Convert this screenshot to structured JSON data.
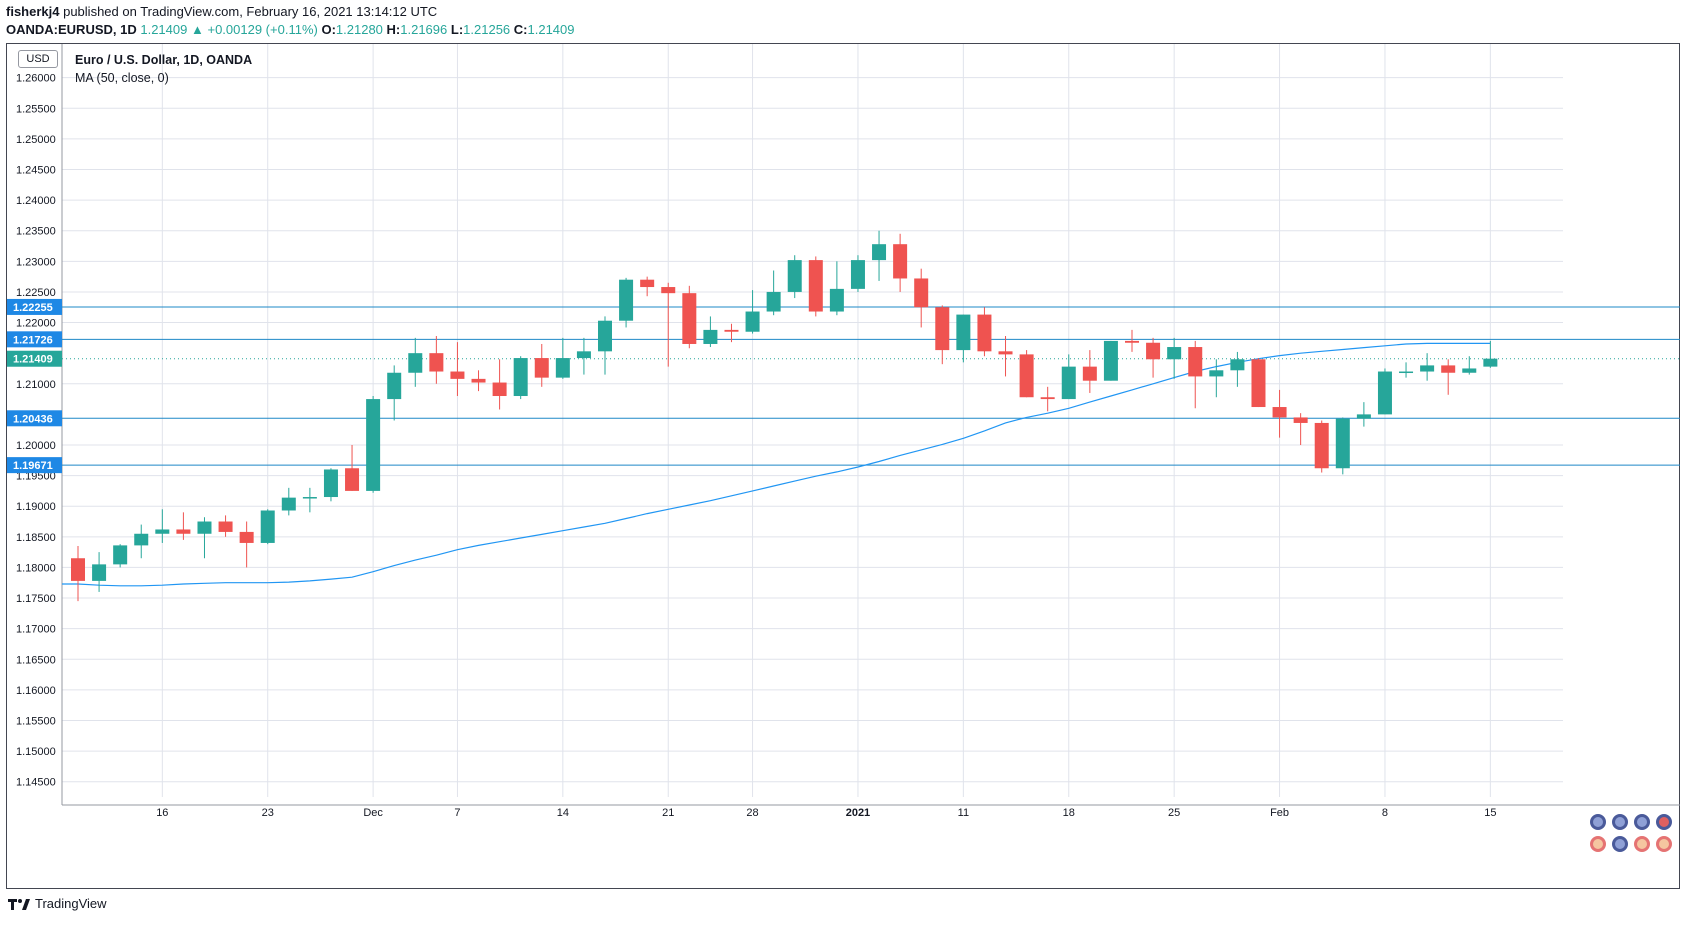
{
  "header": {
    "author": "fisherkj4",
    "published_text": " published on TradingView.com, February 16, 2021 13:14:12 UTC",
    "symbol": "OANDA:EURUSD, 1D",
    "last": "1.21409",
    "arrow": "▲",
    "change": "+0.00129 (+0.11%)",
    "o_label": "O:",
    "o_value": "1.21280",
    "h_label": "H:",
    "h_value": "1.21696",
    "l_label": "L:",
    "l_value": "1.21256",
    "c_label": "C:",
    "c_value": "1.21409"
  },
  "legend": {
    "title": "Euro / U.S. Dollar, 1D, OANDA",
    "ma": "MA (50, close, 0)"
  },
  "currency_badge": "USD",
  "footer": {
    "brand": "TradingView"
  },
  "colors": {
    "up": "#26a69a",
    "down": "#ef5350",
    "ma_line": "#2196f3",
    "level_line": "#1e88c7",
    "grid": "#e0e3eb",
    "badge": "#1e88e5"
  },
  "chart_data": {
    "type": "candlestick",
    "title": "Euro / U.S. Dollar, 1D, OANDA",
    "ylim": [
      1.1425,
      1.2655
    ],
    "y_ticks": [
      "1.26000",
      "1.25500",
      "1.25000",
      "1.24500",
      "1.24000",
      "1.23500",
      "1.23000",
      "1.22500",
      "1.22000",
      "1.21000",
      "1.20000",
      "1.19500",
      "1.19000",
      "1.18500",
      "1.18000",
      "1.17500",
      "1.17000",
      "1.16500",
      "1.16000",
      "1.15500",
      "1.15000",
      "1.14500"
    ],
    "x_ticks": [
      "16",
      "23",
      "Dec",
      "7",
      "14",
      "21",
      "28",
      "2021",
      "11",
      "18",
      "25",
      "Feb",
      "8",
      "15"
    ],
    "x_tick_candle_index": [
      4,
      9,
      14,
      18,
      23,
      28,
      32,
      37,
      42,
      47,
      52,
      57,
      62,
      67
    ],
    "grid": true,
    "horizontal_levels": [
      "1.22255",
      "1.21726",
      "1.20436",
      "1.19671"
    ],
    "last_price": "1.21409",
    "candles": [
      [
        1.1815,
        1.1835,
        1.1745,
        1.1778
      ],
      [
        1.1778,
        1.1825,
        1.176,
        1.1805
      ],
      [
        1.1805,
        1.1838,
        1.18,
        1.1836
      ],
      [
        1.1836,
        1.187,
        1.1815,
        1.1855
      ],
      [
        1.1855,
        1.1895,
        1.184,
        1.1862
      ],
      [
        1.1862,
        1.189,
        1.1845,
        1.1855
      ],
      [
        1.1855,
        1.1882,
        1.1815,
        1.1875
      ],
      [
        1.1875,
        1.1885,
        1.185,
        1.1858
      ],
      [
        1.1858,
        1.1875,
        1.18,
        1.184
      ],
      [
        1.184,
        1.1895,
        1.1838,
        1.1893
      ],
      [
        1.1893,
        1.193,
        1.1885,
        1.1914
      ],
      [
        1.1914,
        1.193,
        1.189,
        1.1915
      ],
      [
        1.1915,
        1.1962,
        1.1908,
        1.196
      ],
      [
        1.1962,
        1.2,
        1.1925,
        1.1925
      ],
      [
        1.1925,
        1.208,
        1.1922,
        1.2075
      ],
      [
        1.2075,
        1.213,
        1.204,
        1.2118
      ],
      [
        1.2118,
        1.2175,
        1.2095,
        1.215
      ],
      [
        1.215,
        1.2178,
        1.21,
        1.212
      ],
      [
        1.212,
        1.2168,
        1.208,
        1.2108
      ],
      [
        1.2108,
        1.2122,
        1.2088,
        1.2102
      ],
      [
        1.2102,
        1.214,
        1.2058,
        1.208
      ],
      [
        1.208,
        1.2145,
        1.2075,
        1.2142
      ],
      [
        1.2142,
        1.2165,
        1.2095,
        1.211
      ],
      [
        1.211,
        1.2175,
        1.2108,
        1.2142
      ],
      [
        1.2142,
        1.2175,
        1.2115,
        1.2153
      ],
      [
        1.2153,
        1.221,
        1.2115,
        1.2203
      ],
      [
        1.2203,
        1.2273,
        1.2192,
        1.227
      ],
      [
        1.227,
        1.2275,
        1.2243,
        1.2258
      ],
      [
        1.2258,
        1.2265,
        1.2128,
        1.2248
      ],
      [
        1.2248,
        1.226,
        1.2158,
        1.2165
      ],
      [
        1.2165,
        1.221,
        1.216,
        1.2188
      ],
      [
        1.2188,
        1.2198,
        1.2168,
        1.2185
      ],
      [
        1.2185,
        1.2253,
        1.2182,
        1.2218
      ],
      [
        1.2218,
        1.2285,
        1.2212,
        1.225
      ],
      [
        1.225,
        1.231,
        1.224,
        1.2302
      ],
      [
        1.2302,
        1.2308,
        1.221,
        1.2218
      ],
      [
        1.2218,
        1.23,
        1.2212,
        1.2255
      ],
      [
        1.2255,
        1.231,
        1.225,
        1.2302
      ],
      [
        1.2302,
        1.235,
        1.2268,
        1.2328
      ],
      [
        1.2328,
        1.2345,
        1.225,
        1.2272
      ],
      [
        1.2272,
        1.2288,
        1.2192,
        1.2225
      ],
      [
        1.2225,
        1.2228,
        1.2132,
        1.2155
      ],
      [
        1.2155,
        1.2213,
        1.2135,
        1.2213
      ],
      [
        1.2213,
        1.2225,
        1.2145,
        1.2153
      ],
      [
        1.2153,
        1.2178,
        1.2112,
        1.2148
      ],
      [
        1.2148,
        1.2155,
        1.2078,
        1.2078
      ],
      [
        1.2078,
        1.2095,
        1.2055,
        1.2075
      ],
      [
        1.2075,
        1.2148,
        1.2075,
        1.2128
      ],
      [
        1.2128,
        1.2155,
        1.2085,
        1.2105
      ],
      [
        1.2105,
        1.217,
        1.2105,
        1.217
      ],
      [
        1.217,
        1.2188,
        1.2152,
        1.2167
      ],
      [
        1.2167,
        1.2175,
        1.211,
        1.214
      ],
      [
        1.214,
        1.2175,
        1.2108,
        1.216
      ],
      [
        1.216,
        1.217,
        1.206,
        1.2112
      ],
      [
        1.2112,
        1.214,
        1.2078,
        1.2122
      ],
      [
        1.2122,
        1.2152,
        1.2095,
        1.214
      ],
      [
        1.214,
        1.2142,
        1.2062,
        1.2062
      ],
      [
        1.2062,
        1.209,
        1.2012,
        1.2045
      ],
      [
        1.2045,
        1.2052,
        1.2,
        1.2036
      ],
      [
        1.2036,
        1.204,
        1.1955,
        1.1962
      ],
      [
        1.1962,
        1.2045,
        1.1952,
        1.2043
      ],
      [
        1.2043,
        1.207,
        1.203,
        1.205
      ],
      [
        1.205,
        1.2125,
        1.205,
        1.212
      ],
      [
        1.212,
        1.2135,
        1.211,
        1.212
      ],
      [
        1.212,
        1.215,
        1.2105,
        1.213
      ],
      [
        1.213,
        1.214,
        1.2082,
        1.2118
      ],
      [
        1.2118,
        1.2145,
        1.2115,
        1.2125
      ],
      [
        1.2128,
        1.217,
        1.2126,
        1.2141
      ]
    ],
    "ma_series": [
      1.1773,
      1.1771,
      1.177,
      1.177,
      1.1771,
      1.1773,
      1.1774,
      1.1775,
      1.1775,
      1.1775,
      1.1776,
      1.1778,
      1.1781,
      1.1784,
      1.1793,
      1.1803,
      1.1812,
      1.182,
      1.1829,
      1.1836,
      1.1842,
      1.1848,
      1.1854,
      1.186,
      1.1866,
      1.1872,
      1.188,
      1.1888,
      1.1895,
      1.1902,
      1.1909,
      1.1917,
      1.1925,
      1.1933,
      1.1941,
      1.1949,
      1.1956,
      1.1964,
      1.1973,
      1.1983,
      1.1992,
      1.2001,
      1.2011,
      1.2023,
      1.2036,
      1.2045,
      1.2052,
      1.206,
      1.207,
      1.208,
      1.209,
      1.21,
      1.211,
      1.212,
      1.2128,
      1.2135,
      1.2141,
      1.2146,
      1.215,
      1.2153,
      1.2156,
      1.2159,
      1.2162,
      1.2165,
      1.2166,
      1.2166,
      1.2166,
      1.2166
    ]
  }
}
